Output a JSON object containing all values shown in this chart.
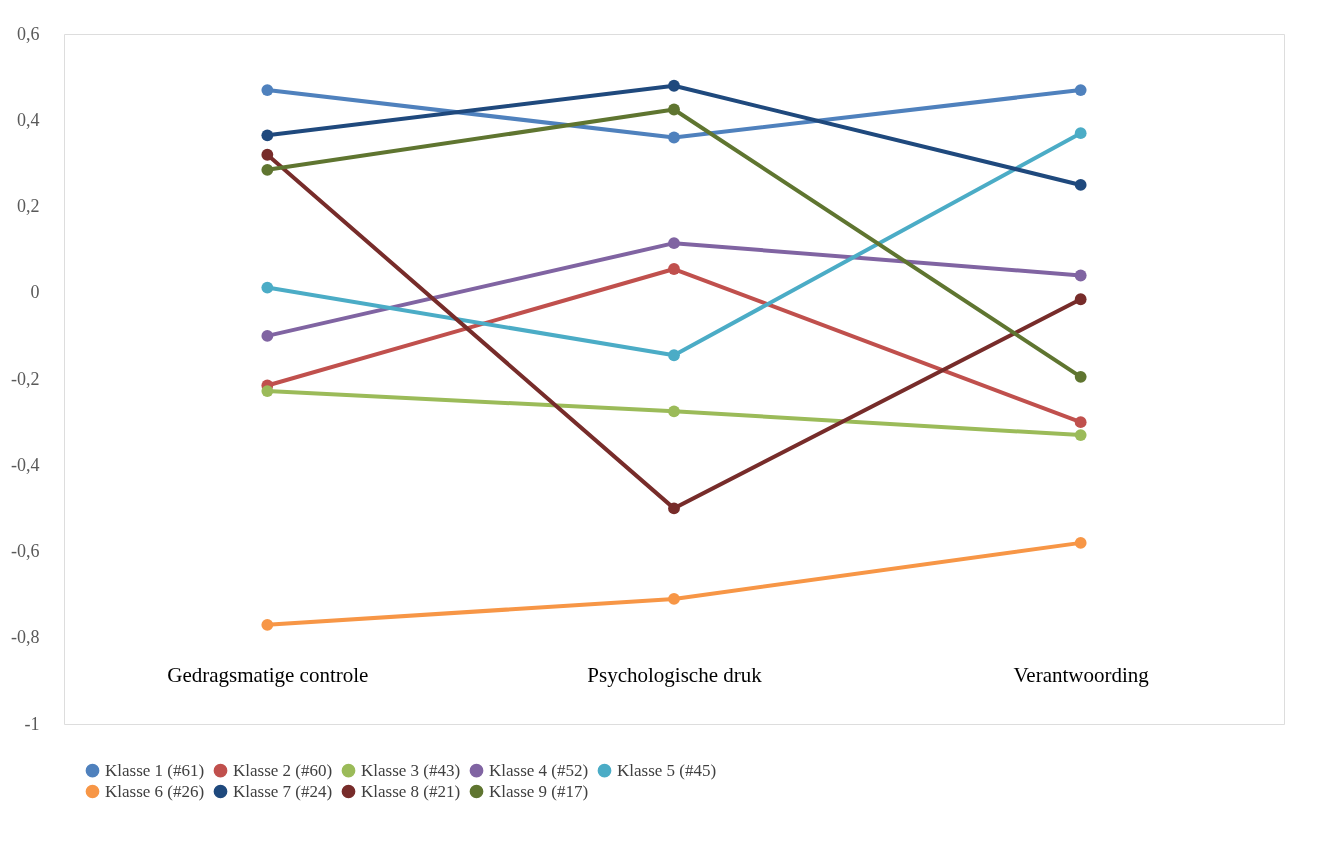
{
  "chart_data": {
    "type": "line",
    "categories": [
      "Gedragsmatige controle",
      "Psychologische druk",
      "Verantwoording"
    ],
    "ylim": [
      -1,
      0.6
    ],
    "yticks": [
      {
        "value": -1,
        "label": "-1"
      },
      {
        "value": -0.8,
        "label": "-0,8"
      },
      {
        "value": -0.6,
        "label": "-0,6"
      },
      {
        "value": -0.4,
        "label": "-0,4"
      },
      {
        "value": -0.2,
        "label": "-0,2"
      },
      {
        "value": 0,
        "label": "0"
      },
      {
        "value": 0.2,
        "label": "0,2"
      },
      {
        "value": 0.4,
        "label": "0,4"
      },
      {
        "value": 0.6,
        "label": "0,6"
      }
    ],
    "grid": false,
    "legend": "bottom",
    "marker": "circle",
    "line_style": "solid",
    "series": [
      {
        "name": "Klasse 1 (#61)",
        "color": "#4f81bd",
        "values": [
          0.47,
          0.36,
          0.47
        ]
      },
      {
        "name": "Klasse 2 (#60)",
        "color": "#c0504d",
        "values": [
          -0.215,
          0.055,
          -0.3
        ]
      },
      {
        "name": "Klasse 3 (#43)",
        "color": "#9bbb59",
        "values": [
          -0.228,
          -0.275,
          -0.33
        ]
      },
      {
        "name": "Klasse 4 (#52)",
        "color": "#8064a2",
        "values": [
          -0.1,
          0.115,
          0.04
        ]
      },
      {
        "name": "Klasse 5 (#45)",
        "color": "#4bacc6",
        "values": [
          0.012,
          -0.145,
          0.37
        ]
      },
      {
        "name": "Klasse 6 (#26)",
        "color": "#f79646",
        "values": [
          -0.77,
          -0.71,
          -0.58
        ]
      },
      {
        "name": "Klasse 7 (#24)",
        "color": "#1f497d",
        "values": [
          0.365,
          0.48,
          0.25
        ]
      },
      {
        "name": "Klasse 8 (#21)",
        "color": "#772c2a",
        "values": [
          0.32,
          -0.5,
          -0.015
        ]
      },
      {
        "name": "Klasse 9 (#17)",
        "color": "#5f7530",
        "values": [
          0.285,
          0.425,
          -0.195
        ]
      }
    ]
  }
}
